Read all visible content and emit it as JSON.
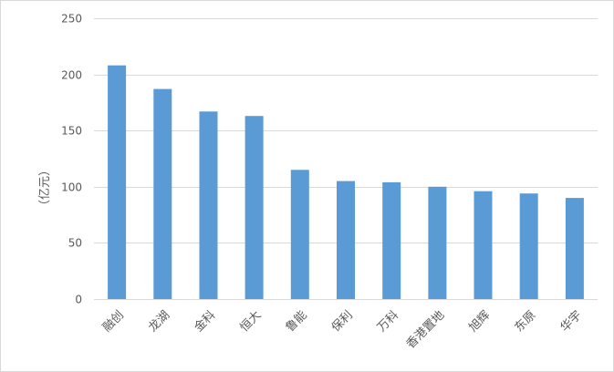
{
  "chart_data": {
    "type": "bar",
    "categories": [
      "融创",
      "龙湖",
      "金科",
      "恒大",
      "鲁能",
      "保利",
      "万科",
      "香港置地",
      "旭辉",
      "东原",
      "华宇"
    ],
    "values": [
      208,
      187,
      167,
      163,
      115,
      105,
      104,
      100,
      96,
      94,
      90
    ],
    "ylabel": "（亿元）",
    "ylim": [
      0,
      250
    ],
    "yticks": [
      0,
      50,
      100,
      150,
      200,
      250
    ],
    "grid": true,
    "legend": "none",
    "colors": {
      "bar": "#5b9bd5",
      "grid": "#d9d9d9",
      "text": "#595959"
    }
  }
}
